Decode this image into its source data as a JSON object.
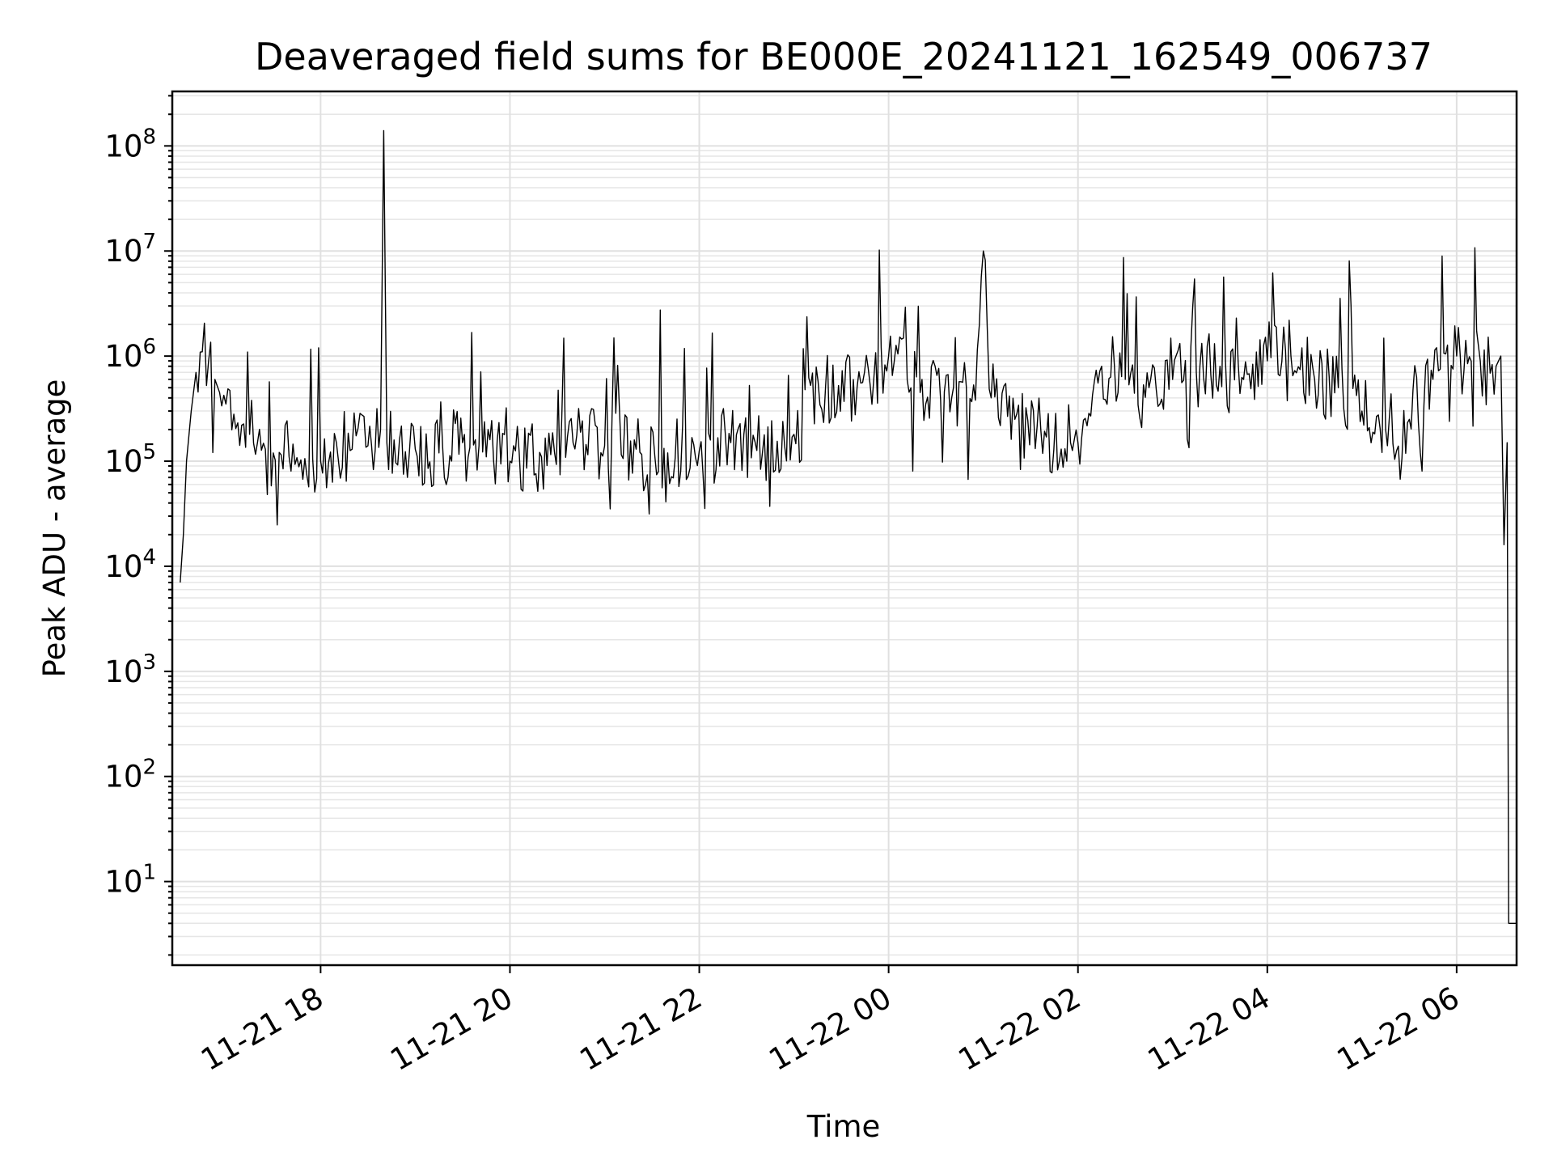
{
  "chart_data": {
    "type": "line",
    "title": "Deaveraged field sums for BE000E_20241121_162549_006737",
    "xlabel": "Time",
    "ylabel": "Peak ADU - average",
    "yscale": "log",
    "grid": "both",
    "x_unit": "datetime",
    "xlim": [
      "2024-11-21 16:26",
      "2024-11-22 06:38"
    ],
    "ylim": [
      1.6,
      330000000
    ],
    "x_ticks": [
      {
        "value": "2024-11-21 18:00",
        "label": "11-21 18"
      },
      {
        "value": "2024-11-21 20:00",
        "label": "11-21 20"
      },
      {
        "value": "2024-11-21 22:00",
        "label": "11-21 22"
      },
      {
        "value": "2024-11-22 00:00",
        "label": "11-22 00"
      },
      {
        "value": "2024-11-22 02:00",
        "label": "11-22 02"
      },
      {
        "value": "2024-11-22 04:00",
        "label": "11-22 04"
      },
      {
        "value": "2024-11-22 06:00",
        "label": "11-22 06"
      }
    ],
    "y_ticks": [
      {
        "value": 10,
        "base": "10",
        "exp": "1"
      },
      {
        "value": 100,
        "base": "10",
        "exp": "2"
      },
      {
        "value": 1000,
        "base": "10",
        "exp": "3"
      },
      {
        "value": 10000,
        "base": "10",
        "exp": "4"
      },
      {
        "value": 100000,
        "base": "10",
        "exp": "5"
      },
      {
        "value": 1000000,
        "base": "10",
        "exp": "6"
      },
      {
        "value": 10000000,
        "base": "10",
        "exp": "7"
      },
      {
        "value": 100000000,
        "base": "10",
        "exp": "8"
      }
    ],
    "series": [
      {
        "color": "#000000",
        "x": [
          "2024-11-21 16:31",
          "2024-11-21 16:33",
          "2024-11-21 16:35",
          "2024-11-21 16:38",
          "2024-11-21 16:41",
          "2024-11-21 16:45",
          "2024-11-21 16:49",
          "2024-11-21 16:53",
          "2024-11-21 16:56",
          "2024-11-21 17:00",
          "2024-11-21 17:05",
          "2024-11-21 17:10",
          "2024-11-21 17:15",
          "2024-11-21 17:20",
          "2024-11-21 17:25",
          "2024-11-21 17:30",
          "2024-11-21 17:35",
          "2024-11-21 17:40",
          "2024-11-21 17:45",
          "2024-11-21 17:50",
          "2024-11-21 17:55",
          "2024-11-21 18:00",
          "2024-11-21 18:10",
          "2024-11-21 18:20",
          "2024-11-21 18:30",
          "2024-11-21 18:38",
          "2024-11-21 18:40",
          "2024-11-21 18:42",
          "2024-11-21 18:50",
          "2024-11-21 19:00",
          "2024-11-21 19:15",
          "2024-11-21 19:30",
          "2024-11-21 19:45",
          "2024-11-21 20:00",
          "2024-11-21 20:20",
          "2024-11-21 20:40",
          "2024-11-21 21:00",
          "2024-11-21 21:20",
          "2024-11-21 21:40",
          "2024-11-21 22:00",
          "2024-11-21 22:20",
          "2024-11-21 22:40",
          "2024-11-21 23:00",
          "2024-11-21 23:20",
          "2024-11-21 23:40",
          "2024-11-22 00:00",
          "2024-11-22 00:20",
          "2024-11-22 00:40",
          "2024-11-22 00:55",
          "2024-11-22 01:00",
          "2024-11-22 01:05",
          "2024-11-22 01:20",
          "2024-11-22 01:40",
          "2024-11-22 02:00",
          "2024-11-22 02:15",
          "2024-11-22 02:30",
          "2024-11-22 02:45",
          "2024-11-22 03:00",
          "2024-11-22 03:15",
          "2024-11-22 03:30",
          "2024-11-22 03:45",
          "2024-11-22 04:00",
          "2024-11-22 04:15",
          "2024-11-22 04:30",
          "2024-11-22 04:45",
          "2024-11-22 05:00",
          "2024-11-22 05:15",
          "2024-11-22 05:30",
          "2024-11-22 05:45",
          "2024-11-22 06:00",
          "2024-11-22 06:15",
          "2024-11-22 06:25",
          "2024-11-22 06:28",
          "2024-11-22 06:30",
          "2024-11-22 06:32",
          "2024-11-22 06:33",
          "2024-11-22 06:35",
          "2024-11-22 06:38"
        ],
        "y": [
          7000,
          20000,
          100000,
          300000,
          700000,
          1100000,
          900000,
          600000,
          450000,
          350000,
          280000,
          220000,
          180000,
          150000,
          130000,
          120000,
          115000,
          110000,
          108000,
          106000,
          105000,
          100000,
          150000,
          130000,
          140000,
          200000,
          140000000,
          150000,
          160000,
          130000,
          120000,
          150000,
          110000,
          100000,
          110000,
          150000,
          140000,
          130000,
          120000,
          125000,
          150000,
          120000,
          180000,
          500000,
          500000,
          1000000,
          450000,
          400000,
          380000,
          10000000,
          400000,
          250000,
          170000,
          150000,
          800000,
          600000,
          500000,
          600000,
          700000,
          800000,
          600000,
          900000,
          1000000,
          600000,
          500000,
          300000,
          200000,
          250000,
          600000,
          1000000,
          900000,
          800000,
          1000000,
          16000,
          150000,
          4,
          4,
          4
        ]
      }
    ]
  }
}
